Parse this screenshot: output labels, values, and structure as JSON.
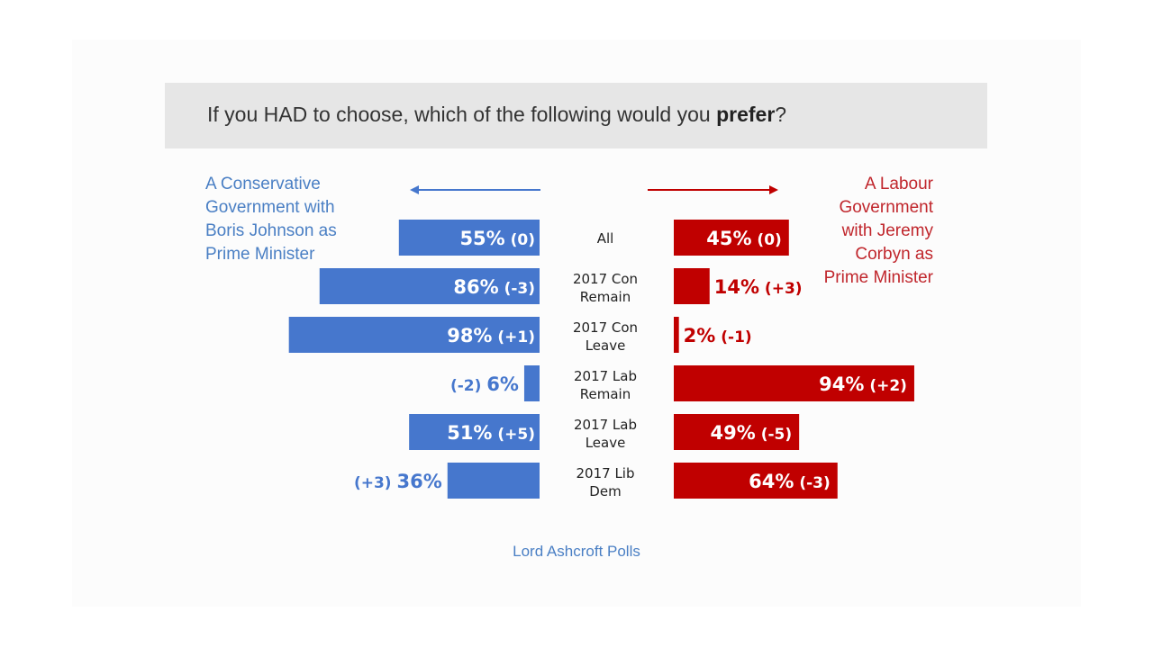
{
  "question": {
    "before": "If you HAD to choose, which of the following would you ",
    "bold": "prefer",
    "after": "?"
  },
  "left_label": {
    "lines": [
      "A Conservative",
      "Government with",
      "Boris Johnson as",
      "Prime Minister"
    ],
    "color": "#4a7fc4"
  },
  "right_label": {
    "lines": [
      "A Labour",
      "Government",
      "with Jeremy",
      "Corbyn as",
      "Prime Minister"
    ],
    "color": "#c0262c"
  },
  "source": "Lord Ashcroft Polls",
  "chart_data": {
    "type": "bar",
    "orientation": "diverging-horizontal",
    "categories": [
      [
        "All"
      ],
      [
        "2017 Con",
        "Remain"
      ],
      [
        "2017 Con",
        "Leave"
      ],
      [
        "2017 Lab",
        "Remain"
      ],
      [
        "2017 Lab",
        "Leave"
      ],
      [
        "2017 Lib",
        "Dem"
      ]
    ],
    "series": [
      {
        "name": "A Conservative Government with Boris Johnson as Prime Minister",
        "side": "left",
        "color": "#4677cd",
        "values": [
          55,
          86,
          98,
          6,
          51,
          36
        ],
        "labels": [
          "55%",
          "86%",
          "98%",
          "6%",
          "51%",
          "36%"
        ],
        "changes": [
          "(0)",
          "(-3)",
          "(+1)",
          "(-2)",
          "(+5)",
          "(+3)"
        ]
      },
      {
        "name": "A Labour Government with Jeremy Corbyn as Prime Minister",
        "side": "right",
        "color": "#c00000",
        "values": [
          45,
          14,
          2,
          94,
          49,
          64
        ],
        "labels": [
          "45%",
          "14%",
          "2%",
          "94%",
          "49%",
          "64%"
        ],
        "changes": [
          "(0)",
          "(+3)",
          "(-1)",
          "(+2)",
          "(-5)",
          "(-3)"
        ]
      }
    ],
    "xlim": [
      0,
      100
    ],
    "title": "If you HAD to choose, which of the following would you prefer?"
  }
}
